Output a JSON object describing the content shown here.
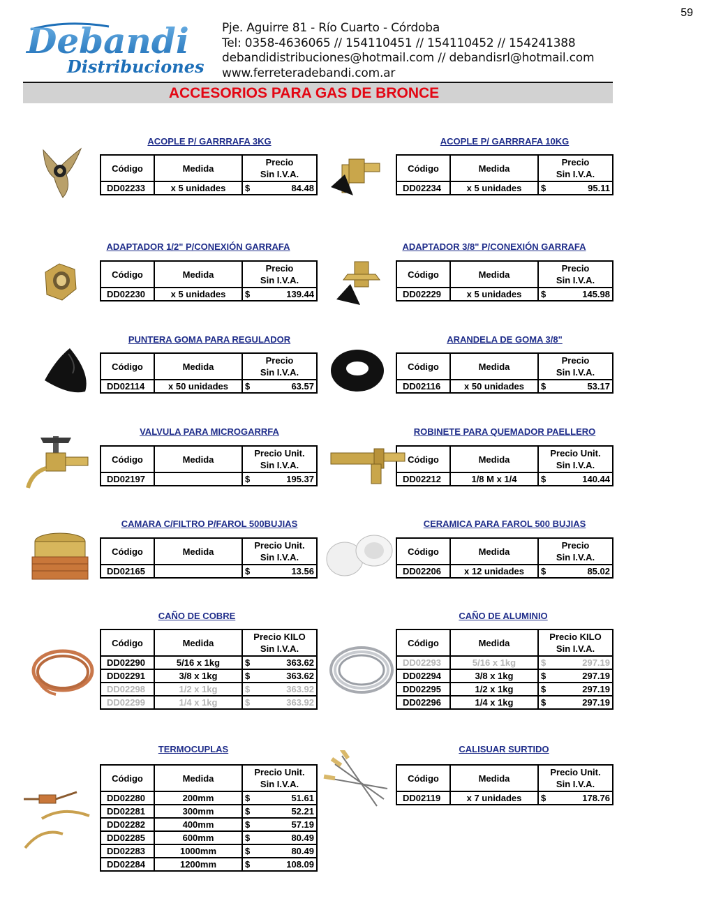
{
  "page_number": "59",
  "header": {
    "brand_name": "Debandi",
    "brand_sub": "Distribuciones",
    "address": "Pje. Aguirre 81 - Río Cuarto - Córdoba",
    "phones": "Tel: 0358-4636065 // 154110451 // 154110452 // 154241388",
    "emails": "debandidistribuciones@hotmail.com // debandisrl@hotmail.com",
    "web": "www.ferreteradebandi.com.ar"
  },
  "section_title": "ACCESORIOS PARA GAS DE BRONCE",
  "products": [
    {
      "title": "ACOPLE P/ GARRRAFA 3KG",
      "headers": {
        "code": "Código",
        "measure": "Medida",
        "price": "Precio\nSin I.V.A."
      },
      "rows": [
        {
          "code": "DD02233",
          "measure": "x 5 unidades",
          "currency": "$",
          "price": "84.48"
        }
      ]
    },
    {
      "title": "ACOPLE P/ GARRRAFA 10KG",
      "headers": {
        "code": "Código",
        "measure": "Medida",
        "price": "Precio\nSin I.V.A."
      },
      "rows": [
        {
          "code": "DD02234",
          "measure": "x 5 unidades",
          "currency": "$",
          "price": "95.11"
        }
      ]
    },
    {
      "title": "ADAPTADOR 1/2\" P/CONEXIÓN GARRAFA",
      "headers": {
        "code": "Código",
        "measure": "Medida",
        "price": "Precio\nSin I.V.A."
      },
      "rows": [
        {
          "code": "DD02230",
          "measure": "x 5 unidades",
          "currency": "$",
          "price": "139.44"
        }
      ]
    },
    {
      "title": "ADAPTADOR 3/8\" P/CONEXIÓN GARRAFA",
      "headers": {
        "code": "Código",
        "measure": "Medida",
        "price": "Precio\nSin I.V.A."
      },
      "rows": [
        {
          "code": "DD02229",
          "measure": "x 5 unidades",
          "currency": "$",
          "price": "145.98"
        }
      ]
    },
    {
      "title": "PUNTERA GOMA PARA REGULADOR",
      "headers": {
        "code": "Código",
        "measure": "Medida",
        "price": "Precio\nSin I.V.A."
      },
      "rows": [
        {
          "code": "DD02114",
          "measure": "x 50 unidades",
          "currency": "$",
          "price": "63.57"
        }
      ]
    },
    {
      "title": "ARANDELA DE GOMA 3/8\"",
      "headers": {
        "code": "Código",
        "measure": "Medida",
        "price": "Precio\nSin I.V.A."
      },
      "rows": [
        {
          "code": "DD02116",
          "measure": "x 50 unidades",
          "currency": "$",
          "price": "53.17"
        }
      ]
    },
    {
      "title": "VALVULA PARA MICROGARRFA",
      "headers": {
        "code": "Código",
        "measure": "Medida",
        "price": "Precio Unit.\nSin I.V.A."
      },
      "rows": [
        {
          "code": "DD02197",
          "measure": "",
          "currency": "$",
          "price": "195.37"
        }
      ]
    },
    {
      "title": "ROBINETE PARA QUEMADOR PAELLERO",
      "headers": {
        "code": "Código",
        "measure": "Medida",
        "price": "Precio Unit.\nSin I.V.A."
      },
      "rows": [
        {
          "code": "DD02212",
          "measure": "1/8 M x 1/4",
          "currency": "$",
          "price": "140.44"
        }
      ]
    },
    {
      "title": "CAMARA C/FILTRO P/FAROL 500BUJIAS",
      "headers": {
        "code": "Código",
        "measure": "Medida",
        "price": "Precio Unit.\nSin I.V.A."
      },
      "rows": [
        {
          "code": "DD02165",
          "measure": "",
          "currency": "$",
          "price": "13.56"
        }
      ]
    },
    {
      "title": "CERAMICA PARA FAROL 500 BUJIAS",
      "headers": {
        "code": "Código",
        "measure": "Medida",
        "price": "Precio\nSin I.V.A."
      },
      "rows": [
        {
          "code": "DD02206",
          "measure": "x 12 unidades",
          "currency": "$",
          "price": "85.02"
        }
      ]
    },
    {
      "title": "CAÑO DE COBRE",
      "headers": {
        "code": "Código",
        "measure": "Medida",
        "price": "Precio KILO\nSin I.V.A."
      },
      "rows": [
        {
          "code": "DD02290",
          "measure": "5/16 x 1kg",
          "currency": "$",
          "price": "363.62"
        },
        {
          "code": "DD02291",
          "measure": "3/8 x 1kg",
          "currency": "$",
          "price": "363.62"
        },
        {
          "code": "DD02298",
          "measure": "1/2 x 1kg",
          "currency": "$",
          "price": "363.92",
          "disabled": true
        },
        {
          "code": "DD02299",
          "measure": "1/4 x 1kg",
          "currency": "$",
          "price": "363.92",
          "disabled": true
        }
      ]
    },
    {
      "title": "CAÑO DE ALUMINIO",
      "headers": {
        "code": "Código",
        "measure": "Medida",
        "price": "Precio KILO\nSin I.V.A."
      },
      "rows": [
        {
          "code": "DD02293",
          "measure": "5/16 x 1kg",
          "currency": "$",
          "price": "297.19",
          "disabled": true
        },
        {
          "code": "DD02294",
          "measure": "3/8 x 1kg",
          "currency": "$",
          "price": "297.19"
        },
        {
          "code": "DD02295",
          "measure": "1/2 x 1kg",
          "currency": "$",
          "price": "297.19"
        },
        {
          "code": "DD02296",
          "measure": "1/4 x 1kg",
          "currency": "$",
          "price": "297.19"
        }
      ]
    },
    {
      "title": "TERMOCUPLAS",
      "headers": {
        "code": "Código",
        "measure": "Medida",
        "price": "Precio Unit.\nSin I.V.A."
      },
      "rows": [
        {
          "code": "DD02280",
          "measure": "200mm",
          "currency": "$",
          "price": "51.61"
        },
        {
          "code": "DD02281",
          "measure": "300mm",
          "currency": "$",
          "price": "52.21"
        },
        {
          "code": "DD02282",
          "measure": "400mm",
          "currency": "$",
          "price": "57.19"
        },
        {
          "code": "DD02285",
          "measure": "600mm",
          "currency": "$",
          "price": "80.49"
        },
        {
          "code": "DD02283",
          "measure": "1000mm",
          "currency": "$",
          "price": "80.49"
        },
        {
          "code": "DD02284",
          "measure": "1200mm",
          "currency": "$",
          "price": "108.09"
        }
      ]
    },
    {
      "title": "CALISUAR SURTIDO",
      "headers": {
        "code": "Código",
        "measure": "Medida",
        "price": "Precio Unit.\nSin I.V.A."
      },
      "rows": [
        {
          "code": "DD02119",
          "measure": "x 7 unidades",
          "currency": "$",
          "price": "178.76"
        }
      ]
    }
  ]
}
